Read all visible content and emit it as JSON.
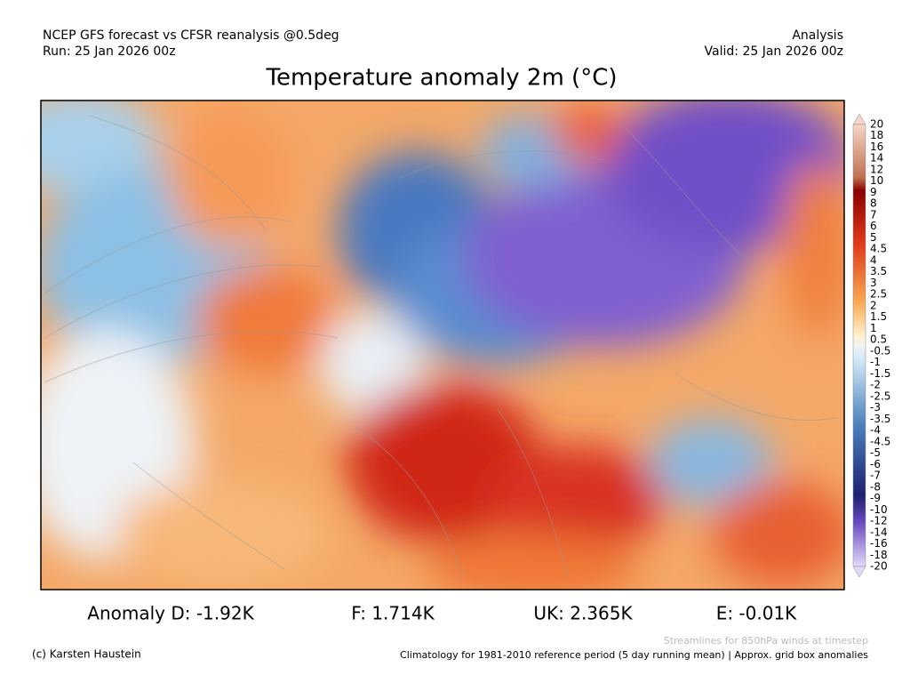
{
  "header": {
    "left": [
      "NCEP GFS forecast vs CFSR reanalysis @0.5deg",
      "Run: 25 Jan 2026 00z"
    ],
    "right": [
      "Analysis",
      "Valid: 25 Jan 2026 00z"
    ],
    "title": "Temperature anomaly 2m (°C)"
  },
  "colorbar": {
    "labels": [
      "20",
      "18",
      "16",
      "14",
      "12",
      "10",
      "9",
      "8",
      "7",
      "6",
      "5",
      "4.5",
      "4",
      "3.5",
      "3",
      "2.5",
      "2",
      "1.5",
      "1",
      "0.5",
      "-0.5",
      "-1",
      "-1.5",
      "-2",
      "-2.5",
      "-3",
      "-3.5",
      "-4",
      "-4.5",
      "-5",
      "-6",
      "-7",
      "-8",
      "-9",
      "-10",
      "-12",
      "-14",
      "-16",
      "-18",
      "-20"
    ]
  },
  "stats": [
    "Anomaly D: -1.92K",
    "F: 1.714K",
    "UK: 2.365K",
    "E: -0.01K"
  ],
  "footer": {
    "credit": "(c) Karsten Haustein",
    "streamlines": "Streamlines for 850hPa winds at timestep",
    "climatology": "Climatology for 1981-2010 reference period (5 day running mean) | Approx. grid box anomalies"
  }
}
